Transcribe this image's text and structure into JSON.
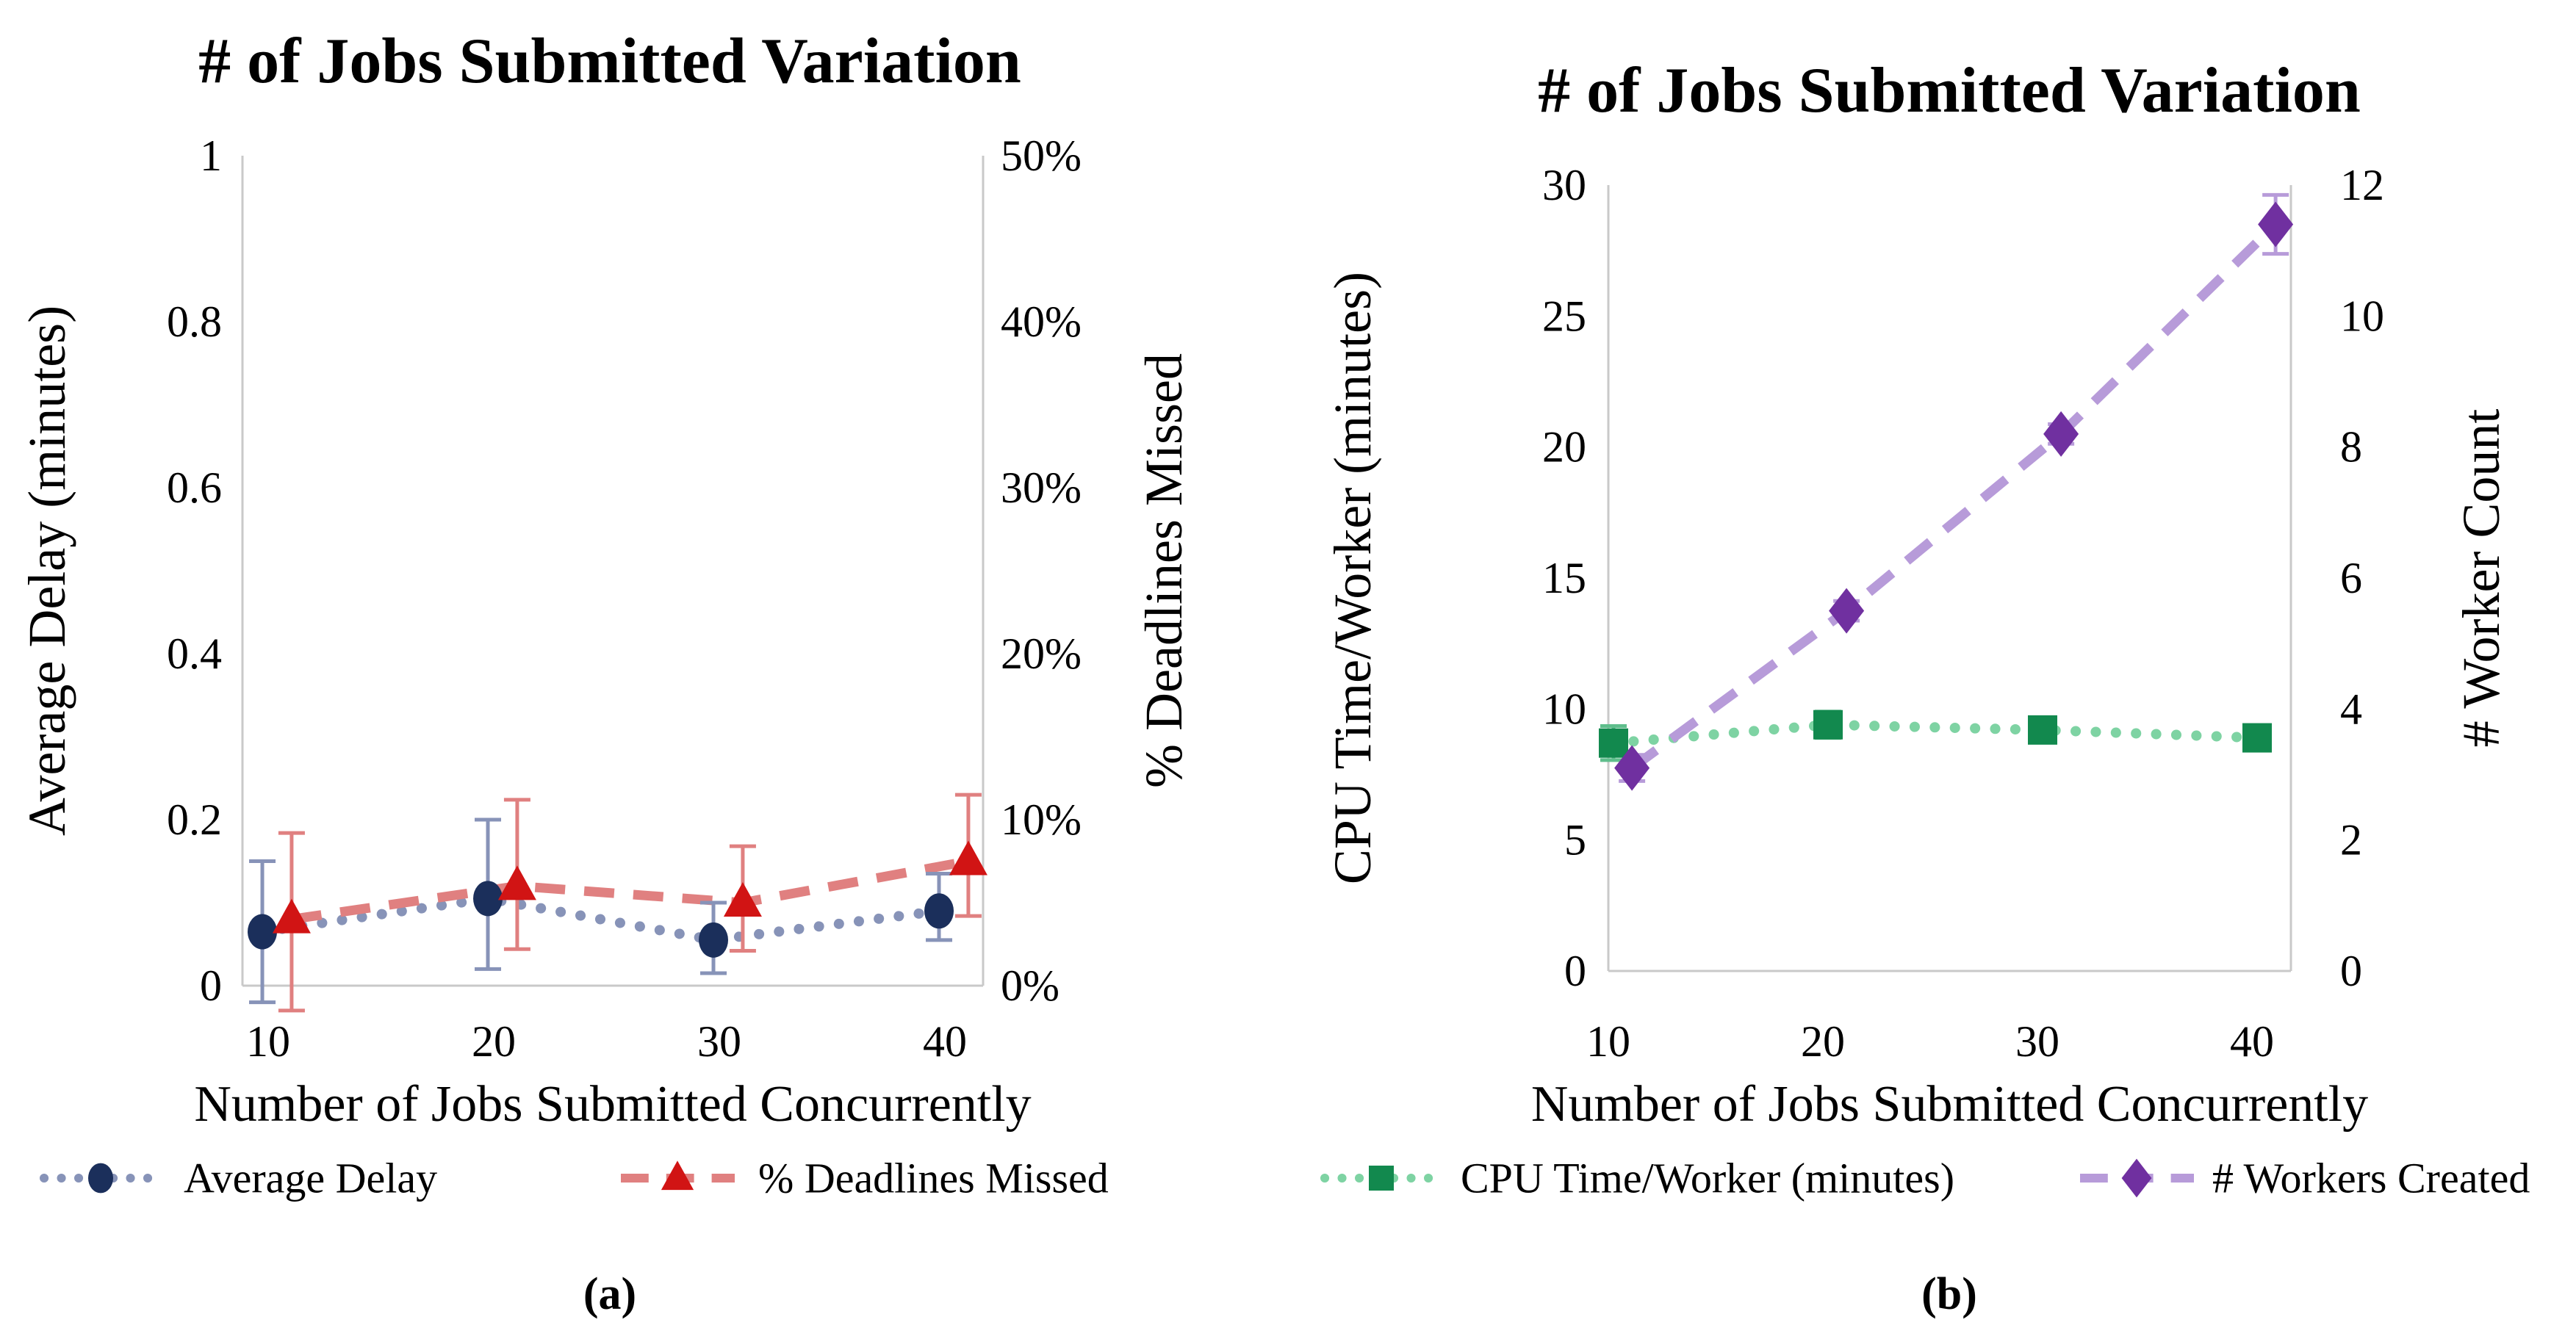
{
  "page": {
    "background": "#ffffff"
  },
  "chart_data": [
    {
      "type": "line",
      "title": "# of Jobs Submitted Variation",
      "caption": "(a)",
      "xlabel": "Number of Jobs Submitted Concurrently",
      "x": [
        10,
        20,
        30,
        40
      ],
      "x_ticks": [
        "10",
        "20",
        "30",
        "40"
      ],
      "grid": false,
      "legend_position": "bottom",
      "y_left": {
        "label": "Average Delay (minutes)",
        "range": [
          0,
          1
        ],
        "tick_labels_top_down": [
          "1",
          "0.8",
          "0.6",
          "0.4",
          "0.2",
          "0"
        ]
      },
      "y_right": {
        "label": "% Deadlines Missed",
        "range": [
          0,
          50
        ],
        "tick_labels_top_down": [
          "50%",
          "40%",
          "30%",
          "20%",
          "10%",
          "0%"
        ]
      },
      "series": [
        {
          "name": "Average Delay",
          "axis": "left",
          "marker": "circle",
          "line_style": "dotted",
          "marker_color": "#1B2F5B",
          "line_color": "#8793B8",
          "error_color": "#8793B8",
          "values": [
            0.065,
            0.105,
            0.055,
            0.09
          ],
          "err_up": [
            0.085,
            0.095,
            0.045,
            0.045
          ],
          "err_down": [
            0.085,
            0.085,
            0.04,
            0.035
          ],
          "x_offset_units": -0.26
        },
        {
          "name": "% Deadlines Missed",
          "axis": "right",
          "marker": "triangle",
          "line_style": "dashed",
          "marker_color": "#D11414",
          "line_color": "#E08080",
          "error_color": "#E08080",
          "values": [
            4,
            6,
            5,
            7.5
          ],
          "err_up": [
            5.2,
            5.2,
            3.4,
            4.0
          ],
          "err_down": [
            5.5,
            3.8,
            2.9,
            3.3
          ],
          "x_offset_units": 1.04
        }
      ]
    },
    {
      "type": "line",
      "title": "# of Jobs Submitted Variation",
      "caption": "(b)",
      "xlabel": "Number of Jobs Submitted Concurrently",
      "x": [
        10,
        20,
        30,
        40
      ],
      "x_ticks": [
        "10",
        "20",
        "30",
        "40"
      ],
      "grid": false,
      "legend_position": "bottom",
      "y_left": {
        "label": "CPU Time/Worker (minutes)",
        "range": [
          0,
          30
        ],
        "tick_labels_top_down": [
          "30",
          "25",
          "20",
          "15",
          "10",
          "5",
          "0"
        ]
      },
      "y_right": {
        "label": "# Worker Count",
        "range": [
          0,
          12
        ],
        "tick_labels_top_down": [
          "12",
          "10",
          "8",
          "6",
          "4",
          "2",
          "0"
        ]
      },
      "series": [
        {
          "name": "CPU Time/Worker (minutes)",
          "axis": "left",
          "marker": "square",
          "line_style": "dotted",
          "marker_color": "#12894E",
          "line_color": "#7ED3A3",
          "error_color": "#5FBE8C",
          "values": [
            8.7,
            9.4,
            9.2,
            8.9
          ],
          "err_up": [
            0.65,
            0.5,
            0.25,
            0.2
          ],
          "err_down": [
            0.65,
            0.5,
            0.25,
            0.2
          ],
          "x_offset_units": 0.24
        },
        {
          "name": "# Workers Created",
          "axis": "right",
          "marker": "diamond",
          "line_style": "dashed",
          "marker_color": "#7030A0",
          "line_color": "#B79BD9",
          "error_color": "#B79BD9",
          "values": [
            3.1,
            5.5,
            8.2,
            11.4
          ],
          "err_up": [
            0.2,
            0.15,
            0.15,
            0.45
          ],
          "err_down": [
            0.2,
            0.15,
            0.15,
            0.45
          ],
          "x_offset_units": 1.1
        }
      ]
    }
  ]
}
